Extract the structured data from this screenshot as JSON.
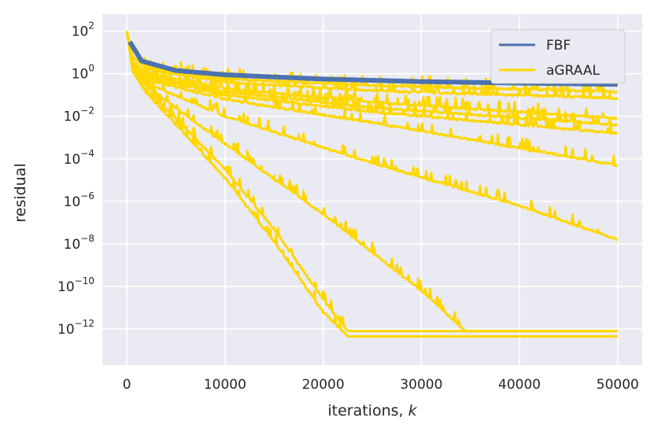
{
  "chart_data": {
    "type": "line",
    "xlabel": "iterations, ",
    "xlabel_italic": "k",
    "ylabel": "residual",
    "yscale": "log",
    "xlim": [
      -2500,
      52500
    ],
    "ylim_log10": [
      -13.7,
      2.8
    ],
    "grid": true,
    "legend_position": "top-right",
    "x_ticks": [
      {
        "value": 0,
        "label": "0"
      },
      {
        "value": 10000,
        "label": "10000"
      },
      {
        "value": 20000,
        "label": "20000"
      },
      {
        "value": 30000,
        "label": "30000"
      },
      {
        "value": 40000,
        "label": "40000"
      },
      {
        "value": 50000,
        "label": "50000"
      }
    ],
    "y_ticks": [
      {
        "exp": 2,
        "base": "10",
        "sup": "2"
      },
      {
        "exp": 0,
        "base": "10",
        "sup": "0"
      },
      {
        "exp": -2,
        "base": "10",
        "sup": "−2"
      },
      {
        "exp": -4,
        "base": "10",
        "sup": "−4"
      },
      {
        "exp": -6,
        "base": "10",
        "sup": "−6"
      },
      {
        "exp": -8,
        "base": "10",
        "sup": "−8"
      },
      {
        "exp": -10,
        "base": "10",
        "sup": "−10"
      },
      {
        "exp": -12,
        "base": "10",
        "sup": "−12"
      }
    ],
    "legend": [
      {
        "name": "FBF",
        "color": "#4c72b0"
      },
      {
        "name": "aGRAAL",
        "color": "#ffd700"
      }
    ],
    "series": [
      {
        "name": "FBF",
        "color": "#4c72b0",
        "width": 6,
        "points": [
          [
            300,
            1.5
          ],
          [
            1500,
            0.6
          ],
          [
            5000,
            0.15
          ],
          [
            10000,
            -0.05
          ],
          [
            20000,
            -0.25
          ],
          [
            30000,
            -0.37
          ],
          [
            40000,
            -0.44
          ],
          [
            50000,
            -0.5
          ]
        ]
      },
      {
        "name": "aGRAAL",
        "color": "#ffd700",
        "width": 3,
        "points": [
          [
            0,
            2.0
          ],
          [
            600,
            0.8
          ],
          [
            2000,
            0.3
          ],
          [
            10000,
            -0.25
          ],
          [
            25000,
            -0.55
          ],
          [
            50000,
            -0.85
          ]
        ]
      },
      {
        "name": "aGRAAL",
        "color": "#ffd700",
        "width": 3,
        "points": [
          [
            0,
            2.0
          ],
          [
            600,
            0.8
          ],
          [
            2000,
            0.2
          ],
          [
            10000,
            -0.4
          ],
          [
            25000,
            -0.8
          ],
          [
            50000,
            -1.15
          ]
        ]
      },
      {
        "name": "aGRAAL",
        "color": "#ffd700",
        "width": 3,
        "points": [
          [
            0,
            2.0
          ],
          [
            600,
            0.6
          ],
          [
            2000,
            0.0
          ],
          [
            10000,
            -0.7
          ],
          [
            25000,
            -1.35
          ],
          [
            50000,
            -2.1
          ]
        ]
      },
      {
        "name": "aGRAAL",
        "color": "#ffd700",
        "width": 3,
        "points": [
          [
            0,
            2.0
          ],
          [
            600,
            0.5
          ],
          [
            2000,
            -0.15
          ],
          [
            10000,
            -0.85
          ],
          [
            25000,
            -1.6
          ],
          [
            50000,
            -2.4
          ]
        ]
      },
      {
        "name": "aGRAAL",
        "color": "#ffd700",
        "width": 3,
        "points": [
          [
            0,
            2.0
          ],
          [
            600,
            0.5
          ],
          [
            2000,
            -0.2
          ],
          [
            10000,
            -1.0
          ],
          [
            25000,
            -1.8
          ],
          [
            50000,
            -2.8
          ]
        ]
      },
      {
        "name": "aGRAAL",
        "color": "#ffd700",
        "width": 3,
        "points": [
          [
            0,
            2.0
          ],
          [
            600,
            0.4
          ],
          [
            2000,
            -0.3
          ],
          [
            10000,
            -1.2
          ],
          [
            25000,
            -2.3
          ],
          [
            50000,
            -4.3
          ]
        ]
      },
      {
        "name": "aGRAAL",
        "color": "#ffd700",
        "width": 3,
        "points": [
          [
            0,
            2.0
          ],
          [
            600,
            0.3
          ],
          [
            2000,
            -0.45
          ],
          [
            10000,
            -2.0
          ],
          [
            25000,
            -4.2
          ],
          [
            40000,
            -6.2
          ],
          [
            50000,
            -7.8
          ]
        ]
      },
      {
        "name": "aGRAAL",
        "color": "#ffd700",
        "width": 3,
        "points": [
          [
            0,
            2.0
          ],
          [
            600,
            0.25
          ],
          [
            2000,
            -0.6
          ],
          [
            10000,
            -3.3
          ],
          [
            20000,
            -6.6
          ],
          [
            30000,
            -10.2
          ],
          [
            34500,
            -12.1
          ],
          [
            50000,
            -12.1
          ]
        ]
      },
      {
        "name": "aGRAAL",
        "color": "#ffd700",
        "width": 3,
        "points": [
          [
            0,
            2.0
          ],
          [
            600,
            0.15
          ],
          [
            2000,
            -0.8
          ],
          [
            5000,
            -2.1
          ],
          [
            10000,
            -4.5
          ],
          [
            15000,
            -7.3
          ],
          [
            20000,
            -10.6
          ],
          [
            22500,
            -12.1
          ],
          [
            50000,
            -12.1
          ]
        ]
      },
      {
        "name": "aGRAAL",
        "color": "#ffd700",
        "width": 3,
        "points": [
          [
            0,
            2.0
          ],
          [
            600,
            0.1
          ],
          [
            2000,
            -0.9
          ],
          [
            5000,
            -2.4
          ],
          [
            10000,
            -4.9
          ],
          [
            15000,
            -7.9
          ],
          [
            20000,
            -11.2
          ],
          [
            22500,
            -12.35
          ],
          [
            50000,
            -12.35
          ]
        ]
      }
    ]
  }
}
